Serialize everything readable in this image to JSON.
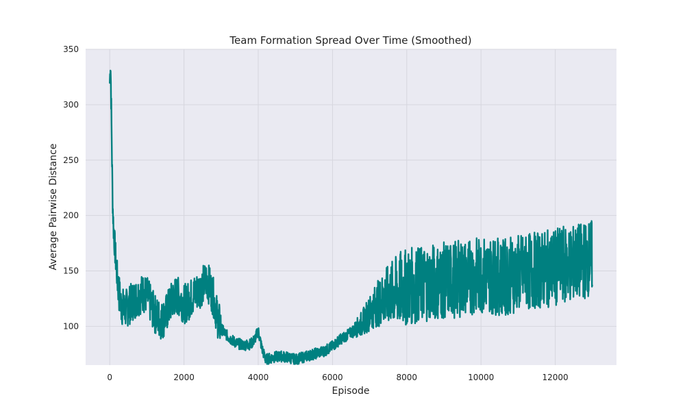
{
  "chart_data": {
    "type": "line",
    "title": "Team Formation Spread Over Time (Smoothed)",
    "xlabel": "Episode",
    "ylabel": "Average Pairwise Distance",
    "xlim": [
      -650,
      13650
    ],
    "ylim": [
      65,
      350
    ],
    "xticks": [
      0,
      2000,
      4000,
      6000,
      8000,
      10000,
      12000
    ],
    "yticks": [
      100,
      150,
      200,
      250,
      300,
      350
    ],
    "grid": true,
    "color": "#008080",
    "series": [
      {
        "x": [
          0,
          20,
          40,
          60,
          80,
          100,
          150,
          200,
          250,
          300,
          400,
          500,
          600,
          700,
          800,
          900,
          1000,
          1100,
          1200,
          1300,
          1400,
          1500,
          1600,
          1700,
          1800,
          1900,
          2000,
          2100,
          2200,
          2300,
          2400,
          2500,
          2600,
          2700,
          2800,
          2900,
          3000,
          3200,
          3400,
          3600,
          3800,
          3900,
          4000,
          4100,
          4200,
          4400,
          4600,
          4800,
          5000,
          5200,
          5400,
          5600,
          5800,
          6000,
          6200,
          6400,
          6600,
          6800,
          7000,
          7200,
          7400,
          7600,
          7800,
          8000,
          8200,
          8400,
          8600,
          8800,
          9000,
          9200,
          9400,
          9600,
          9800,
          10000,
          10200,
          10400,
          10600,
          10800,
          11000,
          11200,
          11400,
          11600,
          11800,
          12000,
          12200,
          12400,
          12600,
          12800,
          13000
        ],
        "y": [
          320,
          340,
          300,
          250,
          210,
          190,
          165,
          145,
          130,
          120,
          115,
          118,
          122,
          125,
          128,
          130,
          128,
          120,
          112,
          108,
          105,
          110,
          118,
          125,
          128,
          125,
          120,
          122,
          126,
          130,
          133,
          137,
          142,
          136,
          125,
          108,
          98,
          90,
          85,
          83,
          84,
          88,
          96,
          80,
          70,
          72,
          73,
          72,
          70,
          72,
          74,
          76,
          78,
          82,
          88,
          92,
          97,
          103,
          112,
          120,
          126,
          130,
          133,
          135,
          137,
          138,
          140,
          140,
          141,
          142,
          143,
          144,
          145,
          146,
          147,
          145,
          144,
          146,
          148,
          149,
          150,
          151,
          152,
          153,
          155,
          156,
          158,
          160,
          162
        ]
      }
    ]
  }
}
